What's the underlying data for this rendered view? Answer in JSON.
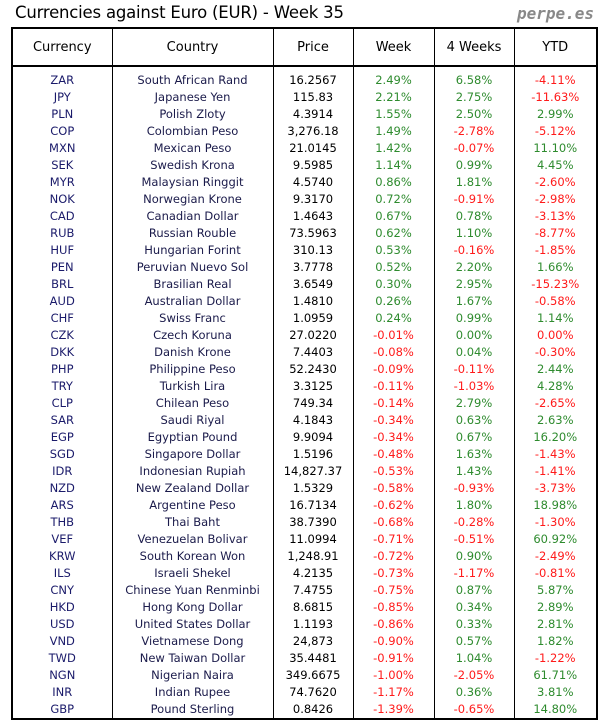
{
  "title": "Currencies against Euro (EUR) - Week 35",
  "brand": "perpe.es",
  "colors": {
    "positive": "#2e8b2e",
    "negative": "#ff1a1a"
  },
  "headers": [
    "Currency",
    "Country",
    "Price",
    "Week",
    "4 Weeks",
    "YTD"
  ],
  "rows": [
    [
      "ZAR",
      "South African Rand",
      "16.2567",
      "2.49%",
      "6.58%",
      "-4.11%"
    ],
    [
      "JPY",
      "Japanese Yen",
      "115.83",
      "2.21%",
      "2.75%",
      "-11.63%"
    ],
    [
      "PLN",
      "Polish Zloty",
      "4.3914",
      "1.55%",
      "2.50%",
      "2.99%"
    ],
    [
      "COP",
      "Colombian Peso",
      "3,276.18",
      "1.49%",
      "-2.78%",
      "-5.12%"
    ],
    [
      "MXN",
      "Mexican Peso",
      "21.0145",
      "1.42%",
      "-0.07%",
      "11.10%"
    ],
    [
      "SEK",
      "Swedish Krona",
      "9.5985",
      "1.14%",
      "0.99%",
      "4.45%"
    ],
    [
      "MYR",
      "Malaysian Ringgit",
      "4.5740",
      "0.86%",
      "1.81%",
      "-2.60%"
    ],
    [
      "NOK",
      "Norwegian Krone",
      "9.3170",
      "0.72%",
      "-0.91%",
      "-2.98%"
    ],
    [
      "CAD",
      "Canadian Dollar",
      "1.4643",
      "0.67%",
      "0.78%",
      "-3.13%"
    ],
    [
      "RUB",
      "Russian Rouble",
      "73.5963",
      "0.62%",
      "1.10%",
      "-8.77%"
    ],
    [
      "HUF",
      "Hungarian Forint",
      "310.13",
      "0.53%",
      "-0.16%",
      "-1.85%"
    ],
    [
      "PEN",
      "Peruvian Nuevo Sol",
      "3.7778",
      "0.52%",
      "2.20%",
      "1.66%"
    ],
    [
      "BRL",
      "Brasilian Real",
      "3.6549",
      "0.30%",
      "2.95%",
      "-15.23%"
    ],
    [
      "AUD",
      "Australian Dollar",
      "1.4810",
      "0.26%",
      "1.67%",
      "-0.58%"
    ],
    [
      "CHF",
      "Swiss Franc",
      "1.0959",
      "0.24%",
      "0.99%",
      "1.14%"
    ],
    [
      "CZK",
      "Czech Koruna",
      "27.0220",
      "-0.01%",
      "0.00%",
      "0.00%"
    ],
    [
      "DKK",
      "Danish Krone",
      "7.4403",
      "-0.08%",
      "0.04%",
      "-0.30%"
    ],
    [
      "PHP",
      "Philippine Peso",
      "52.2430",
      "-0.09%",
      "-0.11%",
      "2.44%"
    ],
    [
      "TRY",
      "Turkish Lira",
      "3.3125",
      "-0.11%",
      "-1.03%",
      "4.28%"
    ],
    [
      "CLP",
      "Chilean Peso",
      "749.34",
      "-0.14%",
      "2.79%",
      "-2.65%"
    ],
    [
      "SAR",
      "Saudi Riyal",
      "4.1843",
      "-0.34%",
      "0.63%",
      "2.63%"
    ],
    [
      "EGP",
      "Egyptian Pound",
      "9.9094",
      "-0.34%",
      "0.67%",
      "16.20%"
    ],
    [
      "SGD",
      "Singapore Dollar",
      "1.5196",
      "-0.48%",
      "1.63%",
      "-1.43%"
    ],
    [
      "IDR",
      "Indonesian Rupiah",
      "14,827.37",
      "-0.53%",
      "1.43%",
      "-1.41%"
    ],
    [
      "NZD",
      "New Zealand Dollar",
      "1.5329",
      "-0.58%",
      "-0.93%",
      "-3.73%"
    ],
    [
      "ARS",
      "Argentine Peso",
      "16.7134",
      "-0.62%",
      "1.80%",
      "18.98%"
    ],
    [
      "THB",
      "Thai Baht",
      "38.7390",
      "-0.68%",
      "-0.28%",
      "-1.30%"
    ],
    [
      "VEF",
      "Venezuelan Bolivar",
      "11.0994",
      "-0.71%",
      "-0.51%",
      "60.92%"
    ],
    [
      "KRW",
      "South Korean Won",
      "1,248.91",
      "-0.72%",
      "0.90%",
      "-2.49%"
    ],
    [
      "ILS",
      "Israeli Shekel",
      "4.2135",
      "-0.73%",
      "-1.17%",
      "-0.81%"
    ],
    [
      "CNY",
      "Chinese Yuan Renminbi",
      "7.4755",
      "-0.75%",
      "0.87%",
      "5.87%"
    ],
    [
      "HKD",
      "Hong Kong Dollar",
      "8.6815",
      "-0.85%",
      "0.34%",
      "2.89%"
    ],
    [
      "USD",
      "United States Dollar",
      "1.1193",
      "-0.86%",
      "0.33%",
      "2.81%"
    ],
    [
      "VND",
      "Vietnamese Dong",
      "24,873",
      "-0.90%",
      "0.57%",
      "1.82%"
    ],
    [
      "TWD",
      "New Taiwan Dollar",
      "35.4481",
      "-0.91%",
      "1.04%",
      "-1.22%"
    ],
    [
      "NGN",
      "Nigerian Naira",
      "349.6675",
      "-1.00%",
      "-2.05%",
      "61.71%"
    ],
    [
      "INR",
      "Indian Rupee",
      "74.7620",
      "-1.17%",
      "0.36%",
      "3.81%"
    ],
    [
      "GBP",
      "Pound Sterling",
      "0.8426",
      "-1.39%",
      "-0.65%",
      "14.80%"
    ]
  ],
  "red_overrides": [
    [
      15,
      5
    ]
  ]
}
